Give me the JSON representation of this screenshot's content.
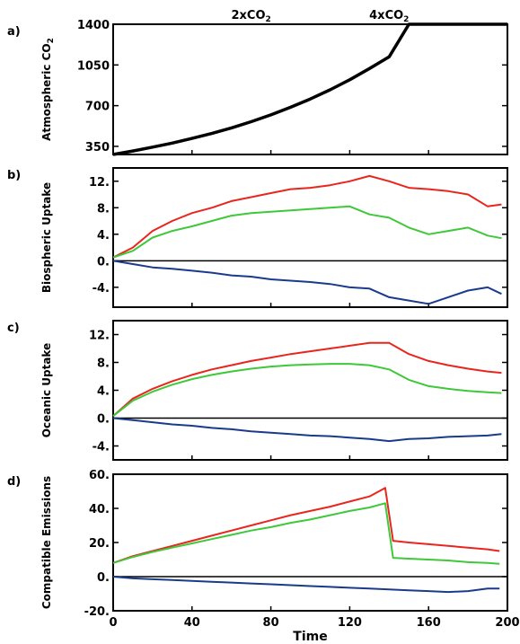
{
  "chart_data": [
    {
      "panel_label": "a)",
      "type": "line",
      "ylabel": "Atmospheric CO2",
      "ylim": [
        280,
        1400
      ],
      "yticks": [
        350,
        700,
        1050,
        1400
      ],
      "xlim": [
        0,
        200
      ],
      "annotations": [
        {
          "text": "2xCO2",
          "x": 70
        },
        {
          "text": "4xCO2",
          "x": 140
        }
      ],
      "series": [
        {
          "color": "#000000",
          "x": [
            0,
            10,
            20,
            30,
            40,
            50,
            60,
            70,
            80,
            90,
            100,
            110,
            120,
            130,
            140,
            150,
            160,
            170,
            180,
            190,
            200
          ],
          "values": [
            280,
            310,
            343,
            378,
            418,
            461,
            509,
            562,
            621,
            686,
            757,
            836,
            923,
            1019,
            1120,
            1400,
            1400,
            1400,
            1400,
            1400,
            1400
          ]
        }
      ]
    },
    {
      "panel_label": "b)",
      "type": "line",
      "ylabel": "Biospheric Uptake",
      "ylim": [
        -7,
        14
      ],
      "yticks": [
        -4,
        0.0,
        4.0,
        8.0,
        12.0
      ],
      "ytick_labels": [
        "-4.",
        "0.",
        "4.",
        "8.",
        "12."
      ],
      "xlim": [
        0,
        200
      ],
      "zero_line": true,
      "series": [
        {
          "color": "#e8261e",
          "x": [
            0,
            10,
            20,
            30,
            40,
            50,
            60,
            70,
            80,
            90,
            100,
            110,
            120,
            130,
            140,
            150,
            160,
            170,
            180,
            190,
            197
          ],
          "values": [
            0.5,
            2,
            4.5,
            6,
            7.2,
            8,
            9,
            9.6,
            10.2,
            10.8,
            11,
            11.4,
            12,
            12.8,
            12,
            11,
            10.8,
            10.5,
            10,
            8.2,
            8.5
          ]
        },
        {
          "color": "#3ec83a",
          "x": [
            0,
            10,
            20,
            30,
            40,
            50,
            60,
            70,
            80,
            90,
            100,
            110,
            120,
            130,
            140,
            150,
            160,
            170,
            180,
            190,
            197
          ],
          "values": [
            0.5,
            1.5,
            3.5,
            4.5,
            5.2,
            6,
            6.8,
            7.2,
            7.4,
            7.6,
            7.8,
            8,
            8.2,
            7,
            6.5,
            5,
            4,
            4.5,
            5,
            3.8,
            3.4
          ]
        },
        {
          "color": "#1a3a8c",
          "x": [
            0,
            10,
            20,
            30,
            40,
            50,
            60,
            70,
            80,
            90,
            100,
            110,
            120,
            130,
            140,
            150,
            160,
            170,
            180,
            190,
            197
          ],
          "values": [
            0,
            -0.5,
            -1,
            -1.2,
            -1.5,
            -1.8,
            -2.2,
            -2.4,
            -2.8,
            -3,
            -3.2,
            -3.5,
            -4,
            -4.2,
            -5.5,
            -6,
            -6.5,
            -5.5,
            -4.5,
            -4,
            -5
          ]
        }
      ]
    },
    {
      "panel_label": "c)",
      "type": "line",
      "ylabel": "Oceanic Uptake",
      "ylim": [
        -6,
        14
      ],
      "yticks": [
        -4,
        0.0,
        4.0,
        8.0,
        12.0
      ],
      "ytick_labels": [
        "-4.",
        "0.",
        "4.",
        "8.",
        "12."
      ],
      "xlim": [
        0,
        200
      ],
      "zero_line": true,
      "series": [
        {
          "color": "#e8261e",
          "x": [
            0,
            10,
            20,
            30,
            40,
            50,
            60,
            70,
            80,
            90,
            100,
            110,
            120,
            130,
            140,
            150,
            160,
            170,
            180,
            190,
            197
          ],
          "values": [
            0.3,
            2.8,
            4.2,
            5.3,
            6.2,
            7,
            7.6,
            8.2,
            8.7,
            9.2,
            9.6,
            10,
            10.4,
            10.8,
            10.8,
            9.2,
            8.2,
            7.6,
            7.1,
            6.7,
            6.5
          ]
        },
        {
          "color": "#3ec83a",
          "x": [
            0,
            10,
            20,
            30,
            40,
            50,
            60,
            70,
            80,
            90,
            100,
            110,
            120,
            130,
            140,
            150,
            160,
            170,
            180,
            190,
            197
          ],
          "values": [
            0.3,
            2.5,
            3.8,
            4.8,
            5.6,
            6.2,
            6.7,
            7.1,
            7.4,
            7.6,
            7.7,
            7.8,
            7.8,
            7.6,
            7,
            5.5,
            4.6,
            4.2,
            3.9,
            3.7,
            3.6
          ]
        },
        {
          "color": "#1a3a8c",
          "x": [
            0,
            10,
            20,
            30,
            40,
            50,
            60,
            70,
            80,
            90,
            100,
            110,
            120,
            130,
            140,
            150,
            160,
            170,
            180,
            190,
            197
          ],
          "values": [
            0,
            -0.3,
            -0.6,
            -0.9,
            -1.1,
            -1.4,
            -1.6,
            -1.9,
            -2.1,
            -2.3,
            -2.5,
            -2.6,
            -2.8,
            -3,
            -3.3,
            -3,
            -2.9,
            -2.7,
            -2.6,
            -2.5,
            -2.3
          ]
        }
      ]
    },
    {
      "panel_label": "d)",
      "type": "line",
      "ylabel": "Compatible Emissions",
      "ylim": [
        -20,
        60
      ],
      "yticks": [
        -20,
        0,
        20,
        40,
        60
      ],
      "ytick_labels": [
        "-20.",
        "0.",
        "20.",
        "40.",
        "60."
      ],
      "xlim": [
        0,
        200
      ],
      "xticks": [
        0,
        40,
        80,
        120,
        160,
        200
      ],
      "xlabel": "Time",
      "zero_line": true,
      "series": [
        {
          "color": "#e8261e",
          "x": [
            0,
            10,
            20,
            30,
            40,
            50,
            60,
            70,
            80,
            90,
            100,
            110,
            120,
            130,
            138,
            142,
            150,
            160,
            170,
            180,
            190,
            196
          ],
          "values": [
            8,
            12,
            15,
            18,
            21,
            24,
            27,
            30,
            33,
            36,
            38.5,
            41,
            44,
            47,
            52,
            21,
            20,
            19,
            18,
            17,
            16,
            15
          ]
        },
        {
          "color": "#3ec83a",
          "x": [
            0,
            10,
            20,
            30,
            40,
            50,
            60,
            70,
            80,
            90,
            100,
            110,
            120,
            130,
            138,
            142,
            150,
            160,
            170,
            180,
            190,
            196
          ],
          "values": [
            8,
            11.5,
            14.5,
            17,
            19.5,
            22,
            24.5,
            27,
            29,
            31.5,
            33.5,
            36,
            38.5,
            40.5,
            43,
            11,
            10.5,
            10,
            9.5,
            8.5,
            8,
            7.5
          ]
        },
        {
          "color": "#1a3a8c",
          "x": [
            0,
            10,
            20,
            30,
            40,
            50,
            60,
            70,
            80,
            90,
            100,
            110,
            120,
            130,
            140,
            150,
            160,
            170,
            180,
            190,
            196
          ],
          "values": [
            0,
            -1,
            -1.5,
            -2,
            -2.5,
            -3,
            -3.5,
            -4,
            -4.5,
            -5,
            -5.5,
            -6,
            -6.5,
            -7,
            -7.5,
            -8,
            -8.5,
            -9,
            -8.5,
            -7,
            -7
          ]
        }
      ]
    }
  ]
}
